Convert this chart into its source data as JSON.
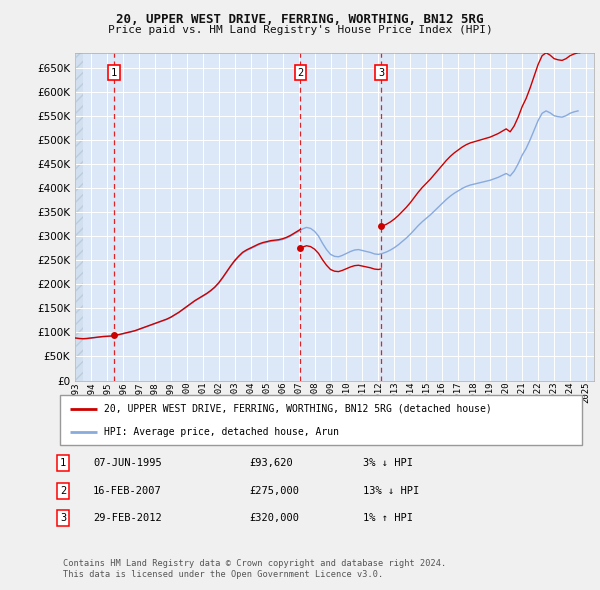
{
  "title": "20, UPPER WEST DRIVE, FERRING, WORTHING, BN12 5RG",
  "subtitle": "Price paid vs. HM Land Registry's House Price Index (HPI)",
  "ylim": [
    0,
    680000
  ],
  "yticks": [
    0,
    50000,
    100000,
    150000,
    200000,
    250000,
    300000,
    350000,
    400000,
    450000,
    500000,
    550000,
    600000,
    650000
  ],
  "xlim_start": 1993.0,
  "xlim_end": 2025.5,
  "fig_bg_color": "#f0f0f0",
  "plot_bg_color": "#dce8f8",
  "grid_color": "#ffffff",
  "sale_color": "#cc0000",
  "hpi_color": "#88aadd",
  "sale_label": "20, UPPER WEST DRIVE, FERRING, WORTHING, BN12 5RG (detached house)",
  "hpi_label": "HPI: Average price, detached house, Arun",
  "sales": [
    {
      "date": 1995.44,
      "price": 93620,
      "label": "1"
    },
    {
      "date": 2007.12,
      "price": 275000,
      "label": "2"
    },
    {
      "date": 2012.16,
      "price": 320000,
      "label": "3"
    }
  ],
  "table_rows": [
    {
      "num": "1",
      "date": "07-JUN-1995",
      "price": "£93,620",
      "rel": "3% ↓ HPI"
    },
    {
      "num": "2",
      "date": "16-FEB-2007",
      "price": "£275,000",
      "rel": "13% ↓ HPI"
    },
    {
      "num": "3",
      "date": "29-FEB-2012",
      "price": "£320,000",
      "rel": "1% ↑ HPI"
    }
  ],
  "footer": "Contains HM Land Registry data © Crown copyright and database right 2024.\nThis data is licensed under the Open Government Licence v3.0.",
  "hpi_data_x": [
    1993.0,
    1993.25,
    1993.5,
    1993.75,
    1994.0,
    1994.25,
    1994.5,
    1994.75,
    1995.0,
    1995.25,
    1995.5,
    1995.75,
    1996.0,
    1996.25,
    1996.5,
    1996.75,
    1997.0,
    1997.25,
    1997.5,
    1997.75,
    1998.0,
    1998.25,
    1998.5,
    1998.75,
    1999.0,
    1999.25,
    1999.5,
    1999.75,
    2000.0,
    2000.25,
    2000.5,
    2000.75,
    2001.0,
    2001.25,
    2001.5,
    2001.75,
    2002.0,
    2002.25,
    2002.5,
    2002.75,
    2003.0,
    2003.25,
    2003.5,
    2003.75,
    2004.0,
    2004.25,
    2004.5,
    2004.75,
    2005.0,
    2005.25,
    2005.5,
    2005.75,
    2006.0,
    2006.25,
    2006.5,
    2006.75,
    2007.0,
    2007.25,
    2007.5,
    2007.75,
    2008.0,
    2008.25,
    2008.5,
    2008.75,
    2009.0,
    2009.25,
    2009.5,
    2009.75,
    2010.0,
    2010.25,
    2010.5,
    2010.75,
    2011.0,
    2011.25,
    2011.5,
    2011.75,
    2012.0,
    2012.25,
    2012.5,
    2012.75,
    2013.0,
    2013.25,
    2013.5,
    2013.75,
    2014.0,
    2014.25,
    2014.5,
    2014.75,
    2015.0,
    2015.25,
    2015.5,
    2015.75,
    2016.0,
    2016.25,
    2016.5,
    2016.75,
    2017.0,
    2017.25,
    2017.5,
    2017.75,
    2018.0,
    2018.25,
    2018.5,
    2018.75,
    2019.0,
    2019.25,
    2019.5,
    2019.75,
    2020.0,
    2020.25,
    2020.5,
    2020.75,
    2021.0,
    2021.25,
    2021.5,
    2021.75,
    2022.0,
    2022.25,
    2022.5,
    2022.75,
    2023.0,
    2023.25,
    2023.5,
    2023.75,
    2024.0,
    2024.25,
    2024.5
  ],
  "hpi_data_y": [
    88000,
    87000,
    86500,
    87000,
    88000,
    89000,
    90000,
    91000,
    91500,
    92000,
    93500,
    95000,
    97000,
    99000,
    101000,
    103000,
    106000,
    109000,
    112000,
    115000,
    118000,
    121000,
    124000,
    127000,
    131000,
    136000,
    141000,
    147000,
    153000,
    159000,
    165000,
    170000,
    175000,
    180000,
    186000,
    193000,
    202000,
    213000,
    225000,
    237000,
    248000,
    257000,
    265000,
    270000,
    274000,
    278000,
    282000,
    285000,
    287000,
    289000,
    290000,
    291000,
    293000,
    296000,
    300000,
    305000,
    310000,
    315000,
    318000,
    316000,
    310000,
    300000,
    285000,
    272000,
    262000,
    258000,
    257000,
    260000,
    264000,
    268000,
    271000,
    272000,
    270000,
    268000,
    266000,
    263000,
    262000,
    264000,
    267000,
    271000,
    276000,
    282000,
    289000,
    296000,
    304000,
    313000,
    322000,
    330000,
    337000,
    344000,
    352000,
    360000,
    368000,
    376000,
    383000,
    389000,
    394000,
    399000,
    403000,
    406000,
    408000,
    410000,
    412000,
    414000,
    416000,
    419000,
    422000,
    426000,
    430000,
    425000,
    435000,
    450000,
    468000,
    482000,
    500000,
    520000,
    540000,
    555000,
    560000,
    556000,
    550000,
    548000,
    547000,
    550000,
    555000,
    558000,
    560000
  ]
}
